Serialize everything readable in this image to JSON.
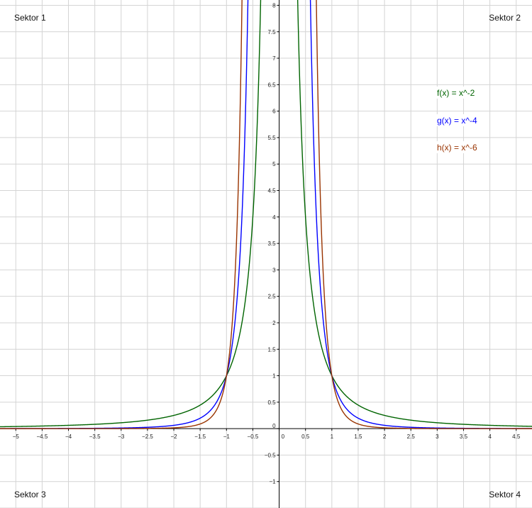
{
  "chart_data": {
    "type": "line",
    "title": "",
    "xlabel": "",
    "ylabel": "",
    "xlim": [
      -5.3,
      4.8
    ],
    "ylim": [
      -1.5,
      8.1
    ],
    "grid": true,
    "legend_position": "top-right",
    "x_ticks": [
      -5,
      -4.5,
      -4,
      -3.5,
      -3,
      -2.5,
      -2,
      -1.5,
      -1,
      -0.5,
      0,
      0.5,
      1,
      1.5,
      2,
      2.5,
      3,
      3.5,
      4,
      4.5
    ],
    "y_ticks": [
      -1,
      -0.5,
      0,
      0.5,
      1,
      1.5,
      2,
      2.5,
      3,
      3.5,
      4,
      4.5,
      5,
      5.5,
      6,
      6.5,
      7,
      7.5,
      8
    ],
    "series": [
      {
        "name": "f(x) = x^-2",
        "exponent": -2,
        "color": "#006400"
      },
      {
        "name": "g(x) = x^-4",
        "exponent": -4,
        "color": "#0000ff"
      },
      {
        "name": "h(x) = x^-6",
        "exponent": -6,
        "color": "#993300"
      }
    ],
    "annotations": [
      {
        "text": "Sektor 1",
        "corner": "top-left"
      },
      {
        "text": "Sektor 2",
        "corner": "top-right"
      },
      {
        "text": "Sektor 3",
        "corner": "bottom-left"
      },
      {
        "text": "Sektor 4",
        "corner": "bottom-right"
      }
    ]
  }
}
